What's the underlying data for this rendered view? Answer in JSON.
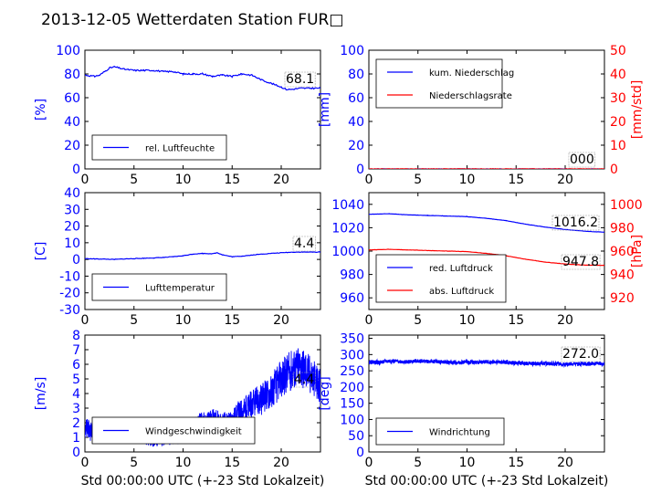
{
  "title": "2013-12-05 Wetterdaten Station FUR□",
  "colors": {
    "blue": "#0000ff",
    "red": "#ff0000",
    "dark": "#000000"
  },
  "chart_data": [
    {
      "type": "line",
      "ylabel": "[%]",
      "ylim": [
        0,
        100
      ],
      "yticks": [
        0,
        20,
        40,
        60,
        80,
        100
      ],
      "xlim": [
        0,
        24
      ],
      "xticks": [
        0,
        5,
        10,
        15,
        20
      ],
      "value_label": "68.1",
      "series": [
        {
          "name": "rel. Luftfeuchte",
          "axis": "left",
          "color": "#0000ff",
          "x": [
            0,
            1,
            1.5,
            2,
            2.5,
            3,
            4,
            5,
            6,
            7,
            8,
            9,
            10,
            11,
            12,
            13,
            14,
            15,
            16,
            17,
            18,
            19,
            20,
            20.5,
            21,
            22,
            23,
            24
          ],
          "y": [
            79,
            78,
            79,
            82,
            85,
            86,
            84,
            83,
            83,
            83,
            82,
            82,
            80,
            80,
            80,
            78,
            79,
            78,
            80,
            79,
            75,
            72,
            69,
            67,
            67,
            68,
            68,
            68
          ]
        }
      ],
      "legend": "lower-left"
    },
    {
      "type": "line",
      "ylabel": "[mm]",
      "ylabel_right": "[mm/std]",
      "ylim": [
        0,
        100
      ],
      "yticks": [
        0,
        20,
        40,
        60,
        80,
        100
      ],
      "ylim_right": [
        0,
        50
      ],
      "yticks_right": [
        0,
        10,
        20,
        30,
        40,
        50
      ],
      "xlim": [
        0,
        24
      ],
      "xticks": [
        0,
        5,
        10,
        15,
        20
      ],
      "value_label": "000",
      "series": [
        {
          "name": "kum. Niederschlag",
          "axis": "left",
          "color": "#0000ff",
          "x": [
            0,
            24
          ],
          "y": [
            0,
            0
          ]
        },
        {
          "name": "Niederschlagsrate",
          "axis": "right",
          "color": "#ff0000",
          "x": [
            0,
            24
          ],
          "y": [
            0,
            0
          ]
        }
      ],
      "legend": "upper-left"
    },
    {
      "type": "line",
      "ylabel": "[C]",
      "ylim": [
        -30,
        40
      ],
      "yticks": [
        -30,
        -20,
        -10,
        0,
        10,
        20,
        30,
        40
      ],
      "xlim": [
        0,
        24
      ],
      "xticks": [
        0,
        5,
        10,
        15,
        20
      ],
      "value_label": "4.4",
      "series": [
        {
          "name": "Lufttemperatur",
          "axis": "left",
          "color": "#0000ff",
          "x": [
            0,
            1,
            2,
            3,
            4,
            5,
            6,
            7,
            8,
            9,
            10,
            11,
            12,
            13,
            13.5,
            14,
            15,
            16,
            17,
            18,
            19,
            20,
            21,
            22,
            23,
            24
          ],
          "y": [
            0.5,
            0.3,
            0.2,
            0,
            0.3,
            0.5,
            0.7,
            0.9,
            1.2,
            1.6,
            2.2,
            3.2,
            3.6,
            3.4,
            4.0,
            2.8,
            1.6,
            2.0,
            2.6,
            3.2,
            3.6,
            4.0,
            4.3,
            4.4,
            4.4,
            4.4
          ]
        }
      ],
      "legend": "lower-left"
    },
    {
      "type": "line",
      "ylabel": "",
      "ylabel_right": "[hPa]",
      "ylim": [
        950,
        1050
      ],
      "yticks": [
        960,
        980,
        1000,
        1020,
        1040
      ],
      "ylim_right": [
        910,
        1010
      ],
      "yticks_right": [
        920,
        940,
        960,
        980,
        1000
      ],
      "xlim": [
        0,
        24
      ],
      "xticks": [
        0,
        5,
        10,
        15,
        20
      ],
      "value_label": "1016.2",
      "value_label_right": "947.8",
      "series": [
        {
          "name": "red. Luftdruck",
          "axis": "left",
          "color": "#0000ff",
          "x": [
            0,
            2,
            4,
            6,
            8,
            10,
            12,
            14,
            16,
            18,
            20,
            22,
            24
          ],
          "y": [
            1031.5,
            1032,
            1031,
            1030.5,
            1030,
            1029.5,
            1028,
            1026,
            1023,
            1020.5,
            1018.5,
            1017,
            1016.2
          ]
        },
        {
          "name": "abs. Luftdruck",
          "axis": "right",
          "color": "#ff0000",
          "x": [
            0,
            2,
            4,
            6,
            8,
            10,
            12,
            14,
            16,
            18,
            20,
            22,
            24
          ],
          "y": [
            961,
            961.5,
            961,
            960.5,
            960,
            959.5,
            958,
            956,
            953,
            950.5,
            949,
            948,
            947.8
          ]
        }
      ],
      "legend": "lower-left"
    },
    {
      "type": "line",
      "ylabel": "[m/s]",
      "ylim": [
        0,
        8
      ],
      "yticks": [
        0,
        1,
        2,
        3,
        4,
        5,
        6,
        7,
        8
      ],
      "xlim": [
        0,
        24
      ],
      "xticks": [
        0,
        5,
        10,
        15,
        20
      ],
      "xlabel": "Std 00:00:00 UTC (+-23 Std Lokalzeit)",
      "value_label": "4.4",
      "series": [
        {
          "name": "Windgeschwindigkeit",
          "axis": "left",
          "color": "#0000ff",
          "x": [
            0,
            1,
            2,
            3,
            4,
            5,
            6,
            7,
            8,
            9,
            10,
            11,
            12,
            13,
            14,
            15,
            16,
            17,
            18,
            19,
            20,
            21,
            22,
            23,
            24
          ],
          "y": [
            1.6,
            1.3,
            1.2,
            1.5,
            1.3,
            1.4,
            1.2,
            0.9,
            1.0,
            1.1,
            1.3,
            1.6,
            2.0,
            2.3,
            1.9,
            2.2,
            2.8,
            3.2,
            3.6,
            4.2,
            5.0,
            5.6,
            5.9,
            5.3,
            4.4
          ]
        }
      ],
      "legend": "lower-center"
    },
    {
      "type": "line",
      "ylabel": "[deg]",
      "ylim": [
        0,
        360
      ],
      "yticks": [
        0,
        50,
        100,
        150,
        200,
        250,
        300,
        350
      ],
      "xlim": [
        0,
        24
      ],
      "xticks": [
        0,
        5,
        10,
        15,
        20
      ],
      "xlabel": "Std 00:00:00 UTC (+-23 Std Lokalzeit)",
      "value_label": "272.0",
      "series": [
        {
          "name": "Windrichtung",
          "axis": "left",
          "color": "#0000ff",
          "x": [
            0,
            1,
            2,
            3,
            4,
            5,
            6,
            7,
            8,
            9,
            10,
            11,
            12,
            13,
            14,
            15,
            16,
            17,
            18,
            19,
            20,
            21,
            22,
            23,
            24
          ],
          "y": [
            278,
            276,
            280,
            279,
            277,
            281,
            279,
            278,
            276,
            275,
            277,
            276,
            278,
            277,
            276,
            274,
            273,
            272,
            273,
            271,
            270,
            272,
            271,
            272,
            272
          ]
        }
      ],
      "legend": "lower-left"
    }
  ]
}
